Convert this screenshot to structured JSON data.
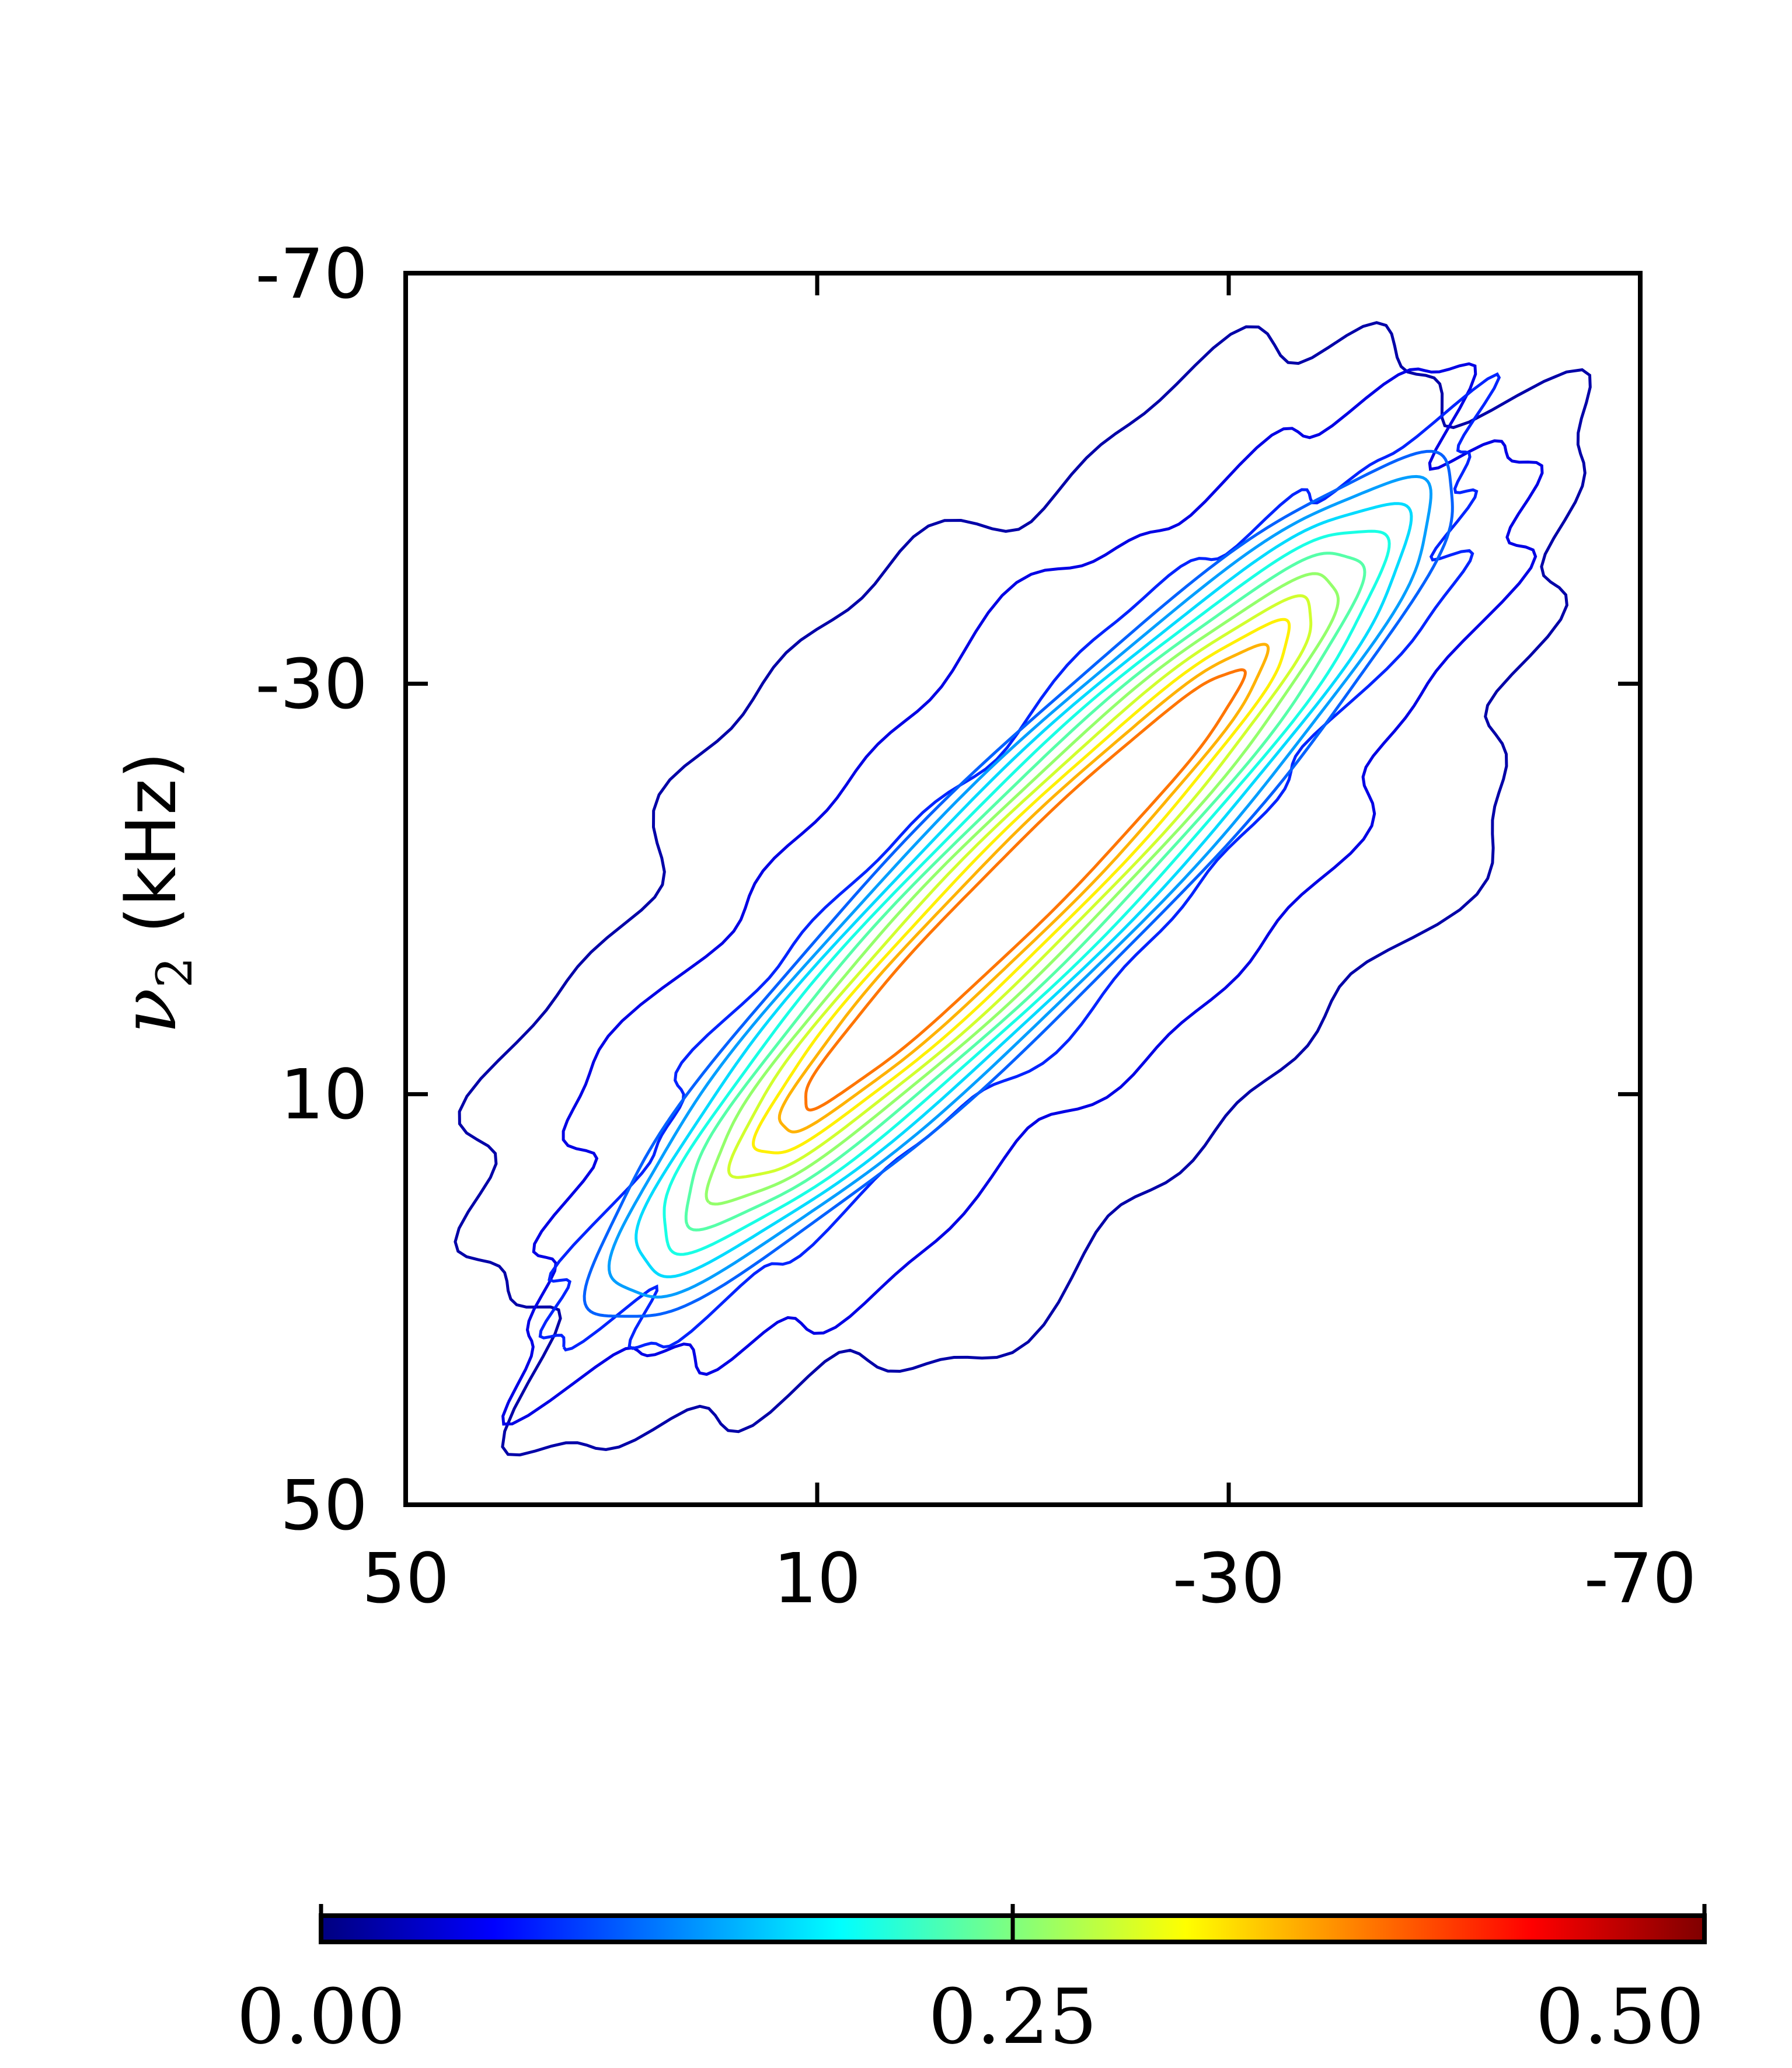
{
  "chart_data": {
    "type": "contour",
    "title": "",
    "xlabel": "",
    "ylabel": {
      "symbol": "ν",
      "subscript": "2",
      "unit": "(kHz)"
    },
    "x_ticks": [
      "50",
      "10",
      "-30",
      "-70"
    ],
    "y_ticks": [
      "-70",
      "-30",
      "10",
      "50"
    ],
    "xlim": [
      50,
      -70
    ],
    "ylim": [
      50,
      -70
    ],
    "grid": false,
    "diagonal": "x = y",
    "contour_levels": [
      0.02,
      0.05,
      0.08,
      0.11,
      0.14,
      0.17,
      0.2,
      0.23,
      0.26,
      0.29,
      0.32,
      0.35,
      0.38
    ],
    "peak_region": {
      "x_range": [
        10,
        -30
      ],
      "y_range": [
        10,
        -30
      ],
      "max_value_above": 0.38
    },
    "colorbar": {
      "min": 0.0,
      "max": 0.5,
      "ticks": [
        "0.00",
        "0.25",
        "0.50"
      ],
      "colormap": [
        "#00007f",
        "#0000ff",
        "#007fff",
        "#00ffff",
        "#7fff7f",
        "#ffff00",
        "#ff7f00",
        "#ff0000",
        "#7f0000"
      ]
    }
  }
}
